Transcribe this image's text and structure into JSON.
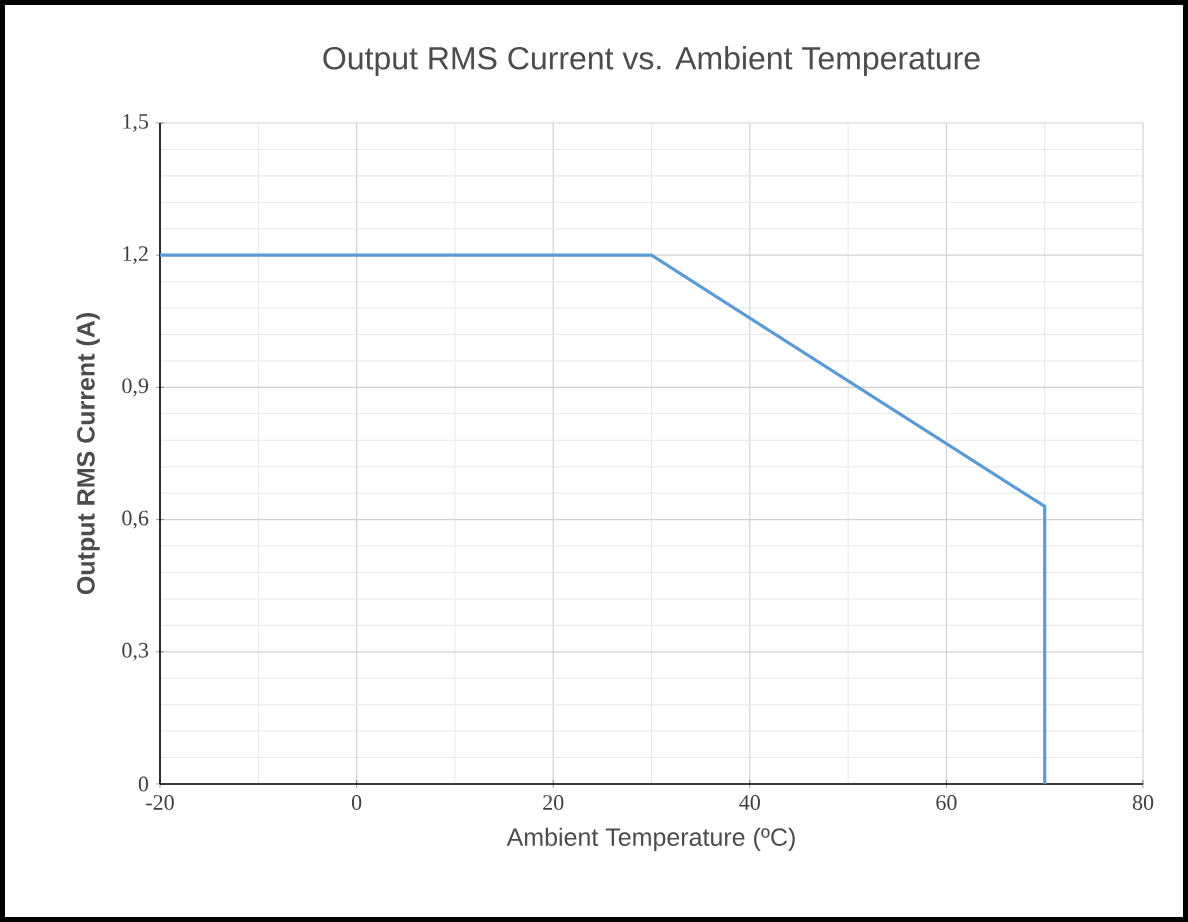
{
  "chart_data": {
    "type": "line",
    "title": "Output RMS Current vs. Ambient Temperature",
    "xlabel": "Ambient Temperature (ºC)",
    "ylabel": "Output RMS Current (A)",
    "series": [
      {
        "color": "#5b9bd5",
        "x": [
          -20,
          30,
          70,
          70
        ],
        "values": [
          1.2,
          1.2,
          0.63,
          0
        ]
      }
    ],
    "xlim": [
      -20,
      80
    ],
    "ylim": [
      0,
      1.5
    ],
    "xticks": [
      -20,
      0,
      20,
      40,
      60,
      80
    ],
    "yticks": [
      0,
      {
        "value": 0.3,
        "label": "0,3"
      },
      {
        "value": 0.6,
        "label": "0,6"
      },
      {
        "value": 0.9,
        "label": "0,9"
      },
      {
        "value": 1.2,
        "label": "1,2"
      },
      {
        "value": 1.5,
        "label": "1,5"
      }
    ],
    "grid": true,
    "marker": "none",
    "line_style": "solid"
  }
}
